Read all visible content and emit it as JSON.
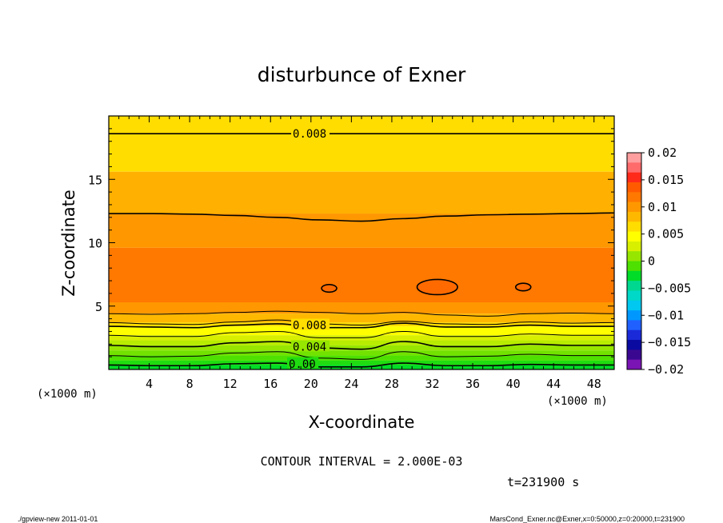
{
  "chart_data": {
    "type": "contour",
    "title": "disturbunce of Exner",
    "xlabel": "X-coordinate",
    "ylabel": "Z-coordinate",
    "x_unit": "(×1000 m)",
    "y_unit": "(×1000 m)",
    "xlim": [
      0,
      50
    ],
    "ylim": [
      0,
      20
    ],
    "x_ticks": [
      4,
      8,
      12,
      16,
      20,
      24,
      28,
      32,
      36,
      40,
      44,
      48
    ],
    "y_ticks": [
      5,
      10,
      15
    ],
    "contour_interval_text": "CONTOUR INTERVAL = 2.000E-03",
    "contour_labels": [
      {
        "text": "0.008",
        "x": 18.2,
        "z": 18.6
      },
      {
        "text": "0.008",
        "x": 18.2,
        "z": 3.5
      },
      {
        "text": "0.004",
        "x": 18.2,
        "z": 1.8
      },
      {
        "text": "0.00",
        "x": 17.8,
        "z": 0.45
      }
    ],
    "contours": [
      {
        "level": 0.008,
        "z": [
          18.6,
          18.6,
          18.6,
          18.6,
          18.6,
          18.6
        ]
      },
      {
        "level": 0.008,
        "z": [
          12.3,
          12.3,
          12.25,
          12.15,
          12.0,
          11.8,
          11.7,
          11.9,
          12.1,
          12.2,
          12.25,
          12.3,
          12.35
        ]
      },
      {
        "level": 0.012,
        "z": [
          4.4,
          4.35,
          4.4,
          4.5,
          4.6,
          4.5,
          4.4,
          4.5,
          4.3,
          4.2,
          4.4,
          4.45,
          4.4
        ]
      },
      {
        "level": 0.01,
        "z": [
          3.7,
          3.6,
          3.55,
          3.75,
          3.9,
          3.6,
          3.5,
          3.8,
          3.6,
          3.55,
          3.75,
          3.65,
          3.7
        ]
      },
      {
        "level": 0.008,
        "z": [
          3.4,
          3.35,
          3.3,
          3.5,
          3.6,
          3.3,
          3.3,
          3.65,
          3.35,
          3.35,
          3.5,
          3.4,
          3.4
        ]
      },
      {
        "level": 0.006,
        "z": [
          2.7,
          2.6,
          2.6,
          2.9,
          3.0,
          2.5,
          2.5,
          3.0,
          2.6,
          2.6,
          2.8,
          2.7,
          2.7
        ]
      },
      {
        "level": 0.004,
        "z": [
          1.9,
          1.8,
          1.8,
          2.1,
          2.2,
          1.7,
          1.6,
          2.2,
          1.8,
          1.8,
          2.0,
          1.9,
          1.9
        ]
      },
      {
        "level": 0.002,
        "z": [
          1.1,
          1.0,
          1.05,
          1.3,
          1.4,
          0.9,
          0.8,
          1.4,
          1.0,
          1.05,
          1.2,
          1.1,
          1.1
        ]
      },
      {
        "level": 0.0,
        "z": [
          0.35,
          0.3,
          0.3,
          0.45,
          0.5,
          0.2,
          0.2,
          0.5,
          0.3,
          0.3,
          0.4,
          0.35,
          0.35
        ]
      }
    ],
    "closed_contours": [
      {
        "level": 0.014,
        "x": 21.8,
        "z": 6.4,
        "rx": 0.75,
        "rz": 0.3
      },
      {
        "level": 0.014,
        "x": 32.5,
        "z": 6.5,
        "rx": 2.0,
        "rz": 0.6
      },
      {
        "level": 0.014,
        "x": 41.0,
        "z": 6.5,
        "rx": 0.75,
        "rz": 0.3
      }
    ],
    "colorbar": {
      "ticks": [
        "0.02",
        "0.015",
        "0.01",
        "0.005",
        "0",
        "−0.005",
        "−0.01",
        "−0.015",
        "−0.02"
      ],
      "levels": [
        0.02,
        0.015,
        0.01,
        0.005,
        0.0,
        -0.005,
        -0.01,
        -0.015,
        -0.02
      ],
      "colors": [
        "#ff9e9e",
        "#ff6a6a",
        "#ff2a1a",
        "#ff5a00",
        "#ff7800",
        "#ff9800",
        "#ffb800",
        "#ffdd00",
        "#ffff00",
        "#d8f000",
        "#96e600",
        "#4ee000",
        "#00dc28",
        "#00d890",
        "#00d8c8",
        "#00c8f0",
        "#0098ff",
        "#2060ff",
        "#1a2ad8",
        "#0a0aa0",
        "#3a0890",
        "#7a14b4"
      ]
    },
    "bands": [
      {
        "zmin": 15.6,
        "zmax": 20.0,
        "color": "#ffdd00"
      },
      {
        "zmin": 12.3,
        "zmax": 15.6,
        "color": "#ffb000"
      },
      {
        "zmin": 9.6,
        "zmax": 12.3,
        "color": "#ff9800"
      },
      {
        "zmin": 5.3,
        "zmax": 9.6,
        "color": "#ff7800"
      },
      {
        "zmin": 4.4,
        "zmax": 5.3,
        "color": "#ff9800"
      },
      {
        "zmin": 3.7,
        "zmax": 4.4,
        "color": "#ffb800"
      },
      {
        "zmin": 3.4,
        "zmax": 3.7,
        "color": "#ffdd00"
      },
      {
        "zmin": 2.7,
        "zmax": 3.4,
        "color": "#ffff00"
      },
      {
        "zmin": 2.3,
        "zmax": 2.7,
        "color": "#d8f000"
      },
      {
        "zmin": 1.9,
        "zmax": 2.3,
        "color": "#b8ec00"
      },
      {
        "zmin": 1.5,
        "zmax": 1.9,
        "color": "#96e600"
      },
      {
        "zmin": 1.1,
        "zmax": 1.5,
        "color": "#72e200"
      },
      {
        "zmin": 0.7,
        "zmax": 1.1,
        "color": "#4ee000"
      },
      {
        "zmin": 0.35,
        "zmax": 0.7,
        "color": "#20dc10"
      },
      {
        "zmin": 0.0,
        "zmax": 0.35,
        "color": "#00dc28"
      }
    ]
  },
  "info": {
    "time": "t=231900 s",
    "footer_left": "./gpview-new  2011-01-01",
    "footer_right": "MarsCond_Exner.nc@Exner,x=0:50000,z=0:20000,t=231900"
  }
}
